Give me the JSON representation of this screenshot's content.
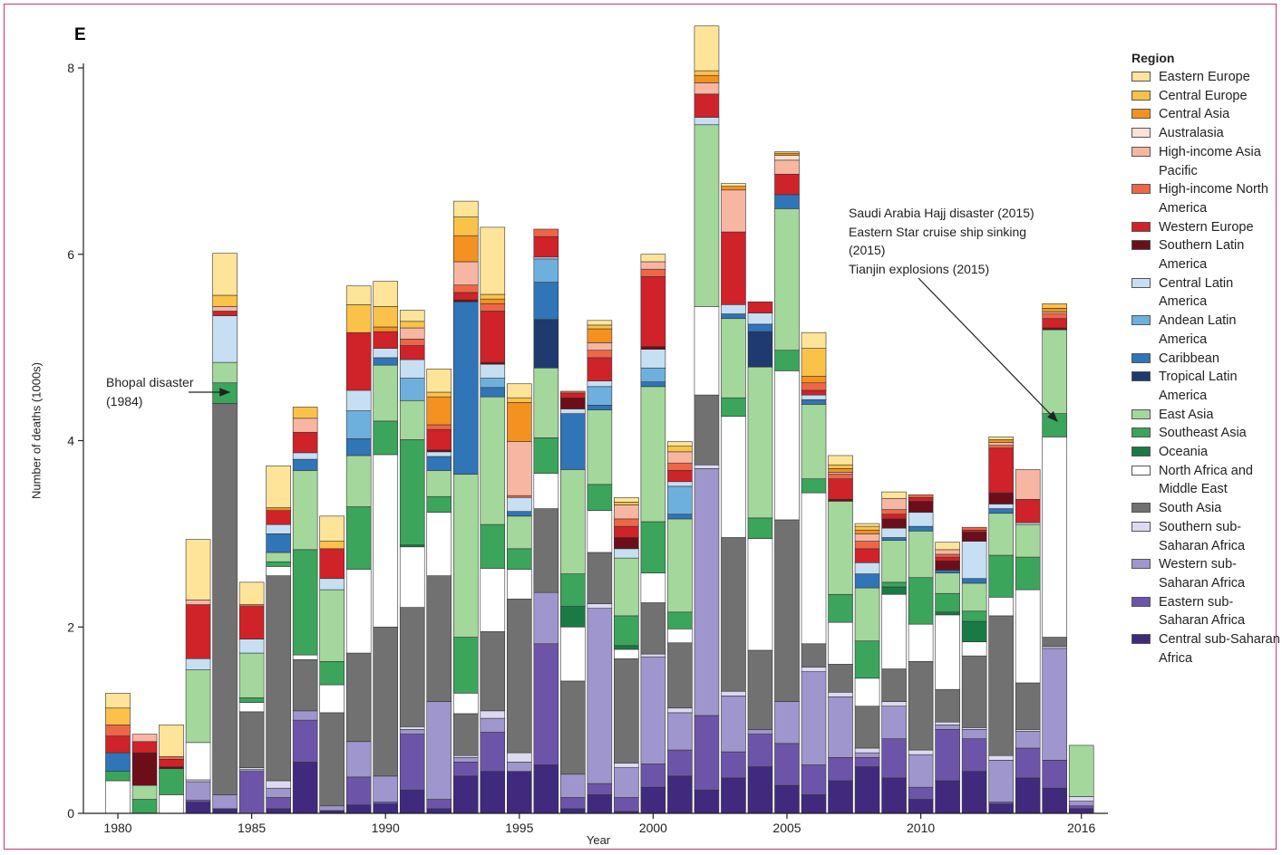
{
  "panel_label": "E",
  "chart_data": {
    "type": "bar",
    "stacked": true,
    "xlabel": "Year",
    "ylabel": "Number of deaths (1000s)",
    "ylim": [
      0,
      8
    ],
    "y_ticks": [
      "0",
      "2",
      "4",
      "6",
      "8"
    ],
    "x_tick_labels": [
      "1980",
      "1985",
      "1990",
      "1995",
      "2000",
      "2005",
      "2010",
      "2016"
    ],
    "x_tick_values": [
      1980,
      1985,
      1990,
      1995,
      2000,
      2005,
      2010,
      2016
    ],
    "years": [
      1980,
      1981,
      1982,
      1983,
      1984,
      1985,
      1986,
      1987,
      1988,
      1989,
      1990,
      1991,
      1992,
      1993,
      1994,
      1995,
      1996,
      1997,
      1998,
      1999,
      2000,
      2001,
      2002,
      2003,
      2004,
      2005,
      2006,
      2007,
      2008,
      2009,
      2010,
      2011,
      2012,
      2013,
      2014,
      2015,
      2016
    ],
    "legend_title": "Region",
    "legend_position": "right",
    "series": [
      {
        "name": "Central sub-Saharan Africa",
        "color": "#3f2a7e",
        "values": [
          0,
          0,
          0,
          0.12,
          0.05,
          0,
          0.05,
          0.55,
          0.03,
          0.09,
          0.1,
          0.25,
          0.05,
          0.4,
          0.45,
          0.45,
          0.52,
          0.05,
          0.2,
          0.02,
          0.28,
          0.4,
          0.25,
          0.38,
          0.5,
          0.3,
          0.2,
          0.35,
          0.5,
          0.38,
          0.15,
          0.35,
          0.45,
          0.1,
          0.38,
          0.27,
          0.05
        ]
      },
      {
        "name": "Eastern sub-Saharan Africa",
        "color": "#6c55a8",
        "values": [
          0,
          0,
          0,
          0.02,
          0,
          0.45,
          0.12,
          0.45,
          0,
          0.3,
          0.02,
          0.6,
          0.1,
          0.15,
          0.42,
          0,
          1.3,
          0.12,
          0.12,
          0.15,
          0.25,
          0.28,
          0.8,
          0.28,
          0.35,
          0.45,
          0.32,
          0.25,
          0.1,
          0.42,
          0.13,
          0.55,
          0.35,
          0.02,
          0.32,
          0.3,
          0.03
        ]
      },
      {
        "name": "Western sub-Saharan Africa",
        "color": "#9f96cd",
        "values": [
          0,
          0,
          0,
          0.2,
          0.15,
          0.02,
          0.1,
          0.1,
          0.05,
          0.38,
          0.28,
          0.05,
          1.05,
          0.05,
          0.15,
          0.1,
          0.55,
          0.25,
          1.88,
          0.32,
          1.15,
          0.4,
          2.65,
          0.6,
          0.05,
          0.45,
          1.0,
          0.65,
          0.05,
          0.35,
          0.35,
          0.05,
          0.1,
          0.45,
          0.18,
          1.2,
          0.05
        ]
      },
      {
        "name": "Southern sub-Saharan Africa",
        "color": "#dcdaf0",
        "values": [
          0,
          0,
          0,
          0.02,
          0,
          0.02,
          0.08,
          0,
          0,
          0,
          0,
          0.03,
          0,
          0.02,
          0.08,
          0.1,
          0,
          0,
          0.05,
          0.05,
          0.03,
          0.05,
          0.04,
          0.05,
          0,
          0,
          0.05,
          0.05,
          0.05,
          0.05,
          0.05,
          0.03,
          0.02,
          0.05,
          0.02,
          0.02,
          0.05
        ]
      },
      {
        "name": "South Asia",
        "color": "#717171",
        "values": [
          0,
          0,
          0,
          0,
          4.2,
          0.6,
          2.2,
          0.55,
          1.0,
          0.95,
          1.6,
          1.28,
          1.35,
          0.45,
          0.85,
          1.65,
          0.9,
          1.0,
          0.55,
          1.12,
          0.55,
          0.7,
          0.75,
          1.65,
          0.85,
          1.95,
          0.25,
          0.3,
          0.45,
          0.35,
          0.95,
          0.35,
          0.77,
          1.5,
          0.5,
          0.1,
          0
        ]
      },
      {
        "name": "North Africa and Middle East",
        "color": "#ffffff",
        "values": [
          0.35,
          0,
          0.2,
          0.4,
          0,
          0.1,
          0.1,
          0.05,
          0.3,
          0.9,
          1.85,
          0.65,
          0.68,
          0.22,
          0.68,
          0.32,
          0.38,
          0.58,
          0.45,
          0.1,
          0.32,
          0.15,
          0.95,
          1.3,
          1.2,
          1.6,
          1.62,
          0.45,
          0.3,
          0.8,
          0.4,
          0.8,
          0.15,
          0.2,
          1.0,
          2.15,
          0
        ]
      },
      {
        "name": "Oceania",
        "color": "#1a7a45",
        "values": [
          0,
          0,
          0,
          0,
          0,
          0,
          0,
          0,
          0,
          0,
          0,
          0.02,
          0,
          0,
          0,
          0,
          0,
          0.22,
          0,
          0.04,
          0,
          0,
          0,
          0,
          0,
          0,
          0,
          0,
          0,
          0.08,
          0,
          0.03,
          0.22,
          0,
          0,
          0,
          0
        ]
      },
      {
        "name": "Southeast Asia",
        "color": "#3ba55c",
        "values": [
          0.1,
          0.15,
          0.28,
          0,
          0.22,
          0.05,
          0.05,
          1.13,
          0.25,
          0.67,
          0.36,
          1.13,
          0.17,
          0.6,
          0.47,
          0.22,
          0.38,
          0.35,
          0.28,
          0.32,
          0.55,
          0.18,
          0,
          0.2,
          0.22,
          0.22,
          0.15,
          0.3,
          0.4,
          0.05,
          0.5,
          0.2,
          0.11,
          0.45,
          0.35,
          0.25,
          0
        ]
      },
      {
        "name": "East Asia",
        "color": "#a3d79b",
        "values": [
          0,
          0.15,
          0,
          0.78,
          0.22,
          0.48,
          0.1,
          0.85,
          0.77,
          0.55,
          0.6,
          0.42,
          0.28,
          1.75,
          1.37,
          0.35,
          0.75,
          1.12,
          0.8,
          0.62,
          1.45,
          1.0,
          1.95,
          0.85,
          1.62,
          1.52,
          0.8,
          1.0,
          0.57,
          0.45,
          0.5,
          0.22,
          0.3,
          0.45,
          0.35,
          0.9,
          0.55
        ]
      },
      {
        "name": "Tropical Latin America",
        "color": "#1f3a6f",
        "values": [
          0,
          0,
          0,
          0,
          0,
          0,
          0,
          0,
          0,
          0,
          0,
          0,
          0,
          0,
          0,
          0,
          0.52,
          0,
          0,
          0,
          0,
          0,
          0,
          0,
          0.38,
          0,
          0,
          0,
          0,
          0,
          0,
          0,
          0,
          0,
          0,
          0,
          0
        ]
      },
      {
        "name": "Caribbean",
        "color": "#2f75b8",
        "values": [
          0.2,
          0,
          0,
          0,
          0,
          0,
          0.2,
          0.12,
          0,
          0.18,
          0.08,
          0,
          0.15,
          1.85,
          0.1,
          0.05,
          0.4,
          0.6,
          0.05,
          0,
          0.05,
          0.05,
          0,
          0.05,
          0.08,
          0.15,
          0.05,
          0,
          0.15,
          0.03,
          0.05,
          0.03,
          0.05,
          0.05,
          0,
          0,
          0
        ]
      },
      {
        "name": "Andean Latin America",
        "color": "#6eb0dd",
        "values": [
          0,
          0,
          0,
          0,
          0,
          0,
          0,
          0,
          0,
          0.3,
          0,
          0.24,
          0,
          0,
          0.1,
          0,
          0.25,
          0,
          0.2,
          0,
          0.15,
          0.3,
          0,
          0,
          0,
          0,
          0,
          0,
          0,
          0,
          0,
          0,
          0,
          0,
          0,
          0,
          0
        ]
      },
      {
        "name": "Central Latin America",
        "color": "#c6dff3",
        "values": [
          0,
          0,
          0,
          0.12,
          0.5,
          0.15,
          0.1,
          0.07,
          0.12,
          0.22,
          0.1,
          0.2,
          0.05,
          0,
          0.15,
          0.15,
          0.02,
          0.05,
          0.06,
          0.1,
          0.2,
          0.05,
          0.08,
          0.1,
          0.12,
          0,
          0.05,
          0,
          0.12,
          0.1,
          0.15,
          0,
          0.4,
          0.05,
          0.02,
          0,
          0
        ]
      },
      {
        "name": "Southern Latin America",
        "color": "#6c0e1a",
        "values": [
          0,
          0.35,
          0.02,
          0,
          0,
          0,
          0,
          0,
          0,
          0,
          0,
          0,
          0.02,
          0.02,
          0.02,
          0,
          0,
          0.12,
          0,
          0.12,
          0.03,
          0,
          0,
          0,
          0,
          0,
          0,
          0.02,
          0,
          0.1,
          0.12,
          0.1,
          0.1,
          0.12,
          0,
          0.02,
          0
        ]
      },
      {
        "name": "Western Europe",
        "color": "#cf2229",
        "values": [
          0.18,
          0.12,
          0.08,
          0.58,
          0.05,
          0.35,
          0.15,
          0.22,
          0.32,
          0.62,
          0.18,
          0.15,
          0.22,
          0.08,
          0.55,
          0,
          0.22,
          0.05,
          0.25,
          0.12,
          0.75,
          0.12,
          0.25,
          0.78,
          0.12,
          0.22,
          0.05,
          0.22,
          0.15,
          0.05,
          0.04,
          0.04,
          0.02,
          0.48,
          0.25,
          0.1,
          0
        ]
      },
      {
        "name": "High-income North America",
        "color": "#ee6648",
        "values": [
          0.12,
          0,
          0.03,
          0,
          0,
          0.02,
          0,
          0,
          0,
          0,
          0,
          0.07,
          0.05,
          0.08,
          0.08,
          0.02,
          0.08,
          0.02,
          0.08,
          0.08,
          0.08,
          0.08,
          0,
          0,
          0,
          0,
          0.08,
          0.05,
          0.08,
          0.05,
          0.03,
          0.03,
          0.03,
          0.03,
          0,
          0.05,
          0
        ]
      },
      {
        "name": "High-income Asia Pacific",
        "color": "#f7b6a1",
        "values": [
          0,
          0.08,
          0,
          0.05,
          0.05,
          0,
          0,
          0.15,
          0,
          0,
          0,
          0.12,
          0,
          0.25,
          0,
          0.58,
          0,
          0,
          0.08,
          0.15,
          0.08,
          0.12,
          0.12,
          0.45,
          0,
          0.15,
          0,
          0.02,
          0.08,
          0.12,
          0,
          0.05,
          0,
          0.03,
          0.32,
          0.02,
          0
        ]
      },
      {
        "name": "Australasia",
        "color": "#fce1d8",
        "values": [
          0,
          0,
          0,
          0,
          0,
          0,
          0,
          0,
          0,
          0,
          0,
          0,
          0,
          0,
          0,
          0,
          0,
          0,
          0,
          0,
          0,
          0,
          0,
          0,
          0,
          0.05,
          0,
          0,
          0,
          0,
          0,
          0,
          0,
          0,
          0,
          0,
          0
        ]
      },
      {
        "name": "Central Asia",
        "color": "#f39121",
        "values": [
          0,
          0,
          0,
          0,
          0,
          0,
          0.03,
          0,
          0,
          0,
          0.05,
          0,
          0.3,
          0.28,
          0.05,
          0.42,
          0,
          0,
          0.15,
          0,
          0,
          0,
          0.08,
          0.04,
          0,
          0.02,
          0.07,
          0.04,
          0.04,
          0,
          0,
          0,
          0,
          0.03,
          0,
          0.04,
          0
        ]
      },
      {
        "name": "Central Europe",
        "color": "#fbc24a",
        "values": [
          0.18,
          0,
          0,
          0,
          0.12,
          0,
          0,
          0.12,
          0.08,
          0.3,
          0.22,
          0.07,
          0.05,
          0.2,
          0.05,
          0.05,
          0,
          0,
          0.04,
          0.03,
          0,
          0.06,
          0.05,
          0,
          0,
          0.02,
          0.3,
          0.04,
          0.04,
          0,
          0,
          0,
          0,
          0,
          0,
          0.05,
          0
        ]
      },
      {
        "name": "Eastern Europe",
        "color": "#fde499",
        "values": [
          0.16,
          0,
          0.34,
          0.65,
          0.45,
          0.24,
          0.45,
          0,
          0.27,
          0.2,
          0.27,
          0.12,
          0.25,
          0.17,
          0.72,
          0.15,
          0,
          0,
          0.05,
          0.05,
          0.08,
          0.05,
          0.48,
          0.03,
          0,
          0,
          0.17,
          0.1,
          0.03,
          0.07,
          0,
          0.08,
          0,
          0.03,
          0,
          0,
          0
        ]
      }
    ],
    "annotations": [
      {
        "lines": [
          "Bhopal disaster",
          "(1984)"
        ],
        "year": 1984
      },
      {
        "lines": [
          "Saudi Arabia Hajj disaster (2015)",
          "Eastern Star cruise ship sinking",
          "(2015)",
          "Tianjin explosions (2015)"
        ],
        "year": 2015
      }
    ]
  }
}
